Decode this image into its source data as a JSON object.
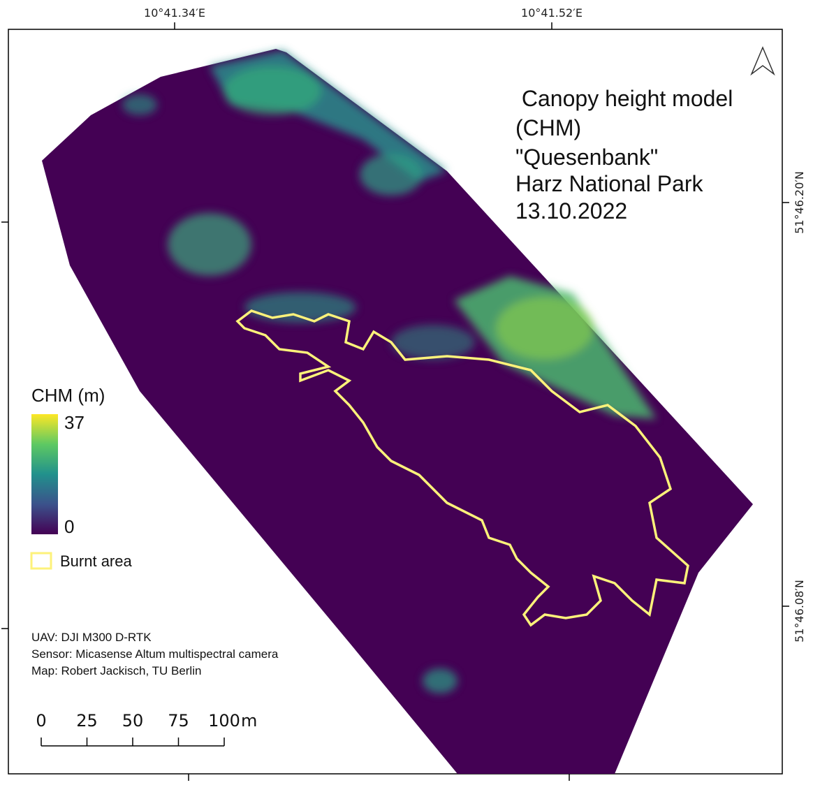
{
  "coordinates": {
    "top": [
      "10°41.34′E",
      "10°41.52′E"
    ],
    "right": [
      "51°46.20′N",
      "51°46.08′N"
    ]
  },
  "title": [
    " Canopy height model",
    "(CHM)",
    "\"Quesenbank\"",
    "Harz National Park",
    "13.10.2022"
  ],
  "legend": {
    "title": "CHM (m)",
    "max": 37,
    "min": 0,
    "burnt_label": "Burnt area"
  },
  "credits": [
    "UAV: DJI M300 D-RTK",
    "Sensor: Micasense Altum multispectral camera",
    "Map: Robert Jackisch, TU Berlin"
  ],
  "scale_bar": {
    "ticks": [
      0,
      25,
      50,
      75,
      100
    ],
    "unit": "m"
  }
}
